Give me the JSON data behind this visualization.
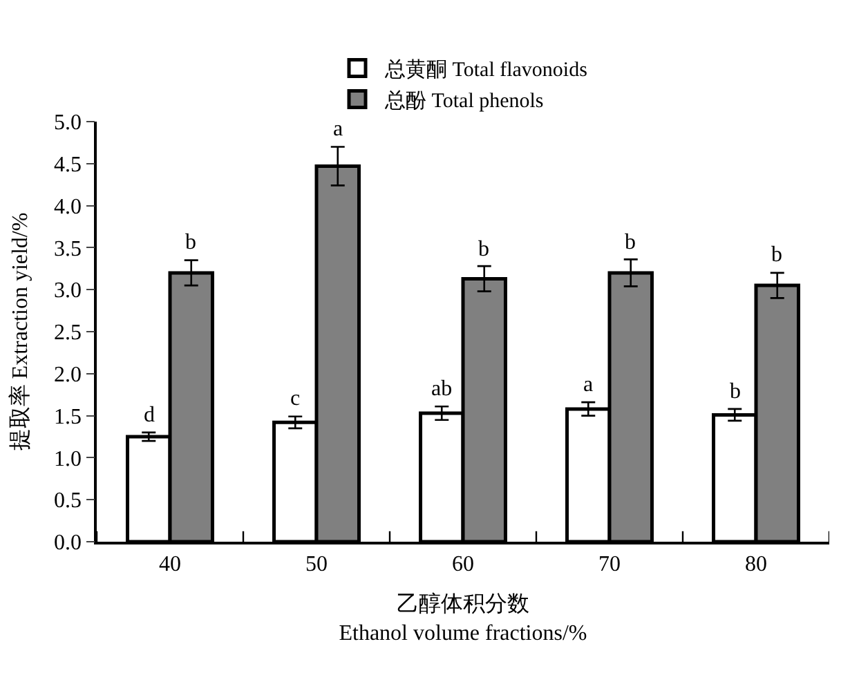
{
  "chart_data": {
    "type": "bar",
    "xlabel": "乙醇体积分数\nEthanol volume fractions/%",
    "ylabel": "提取率 Extraction yield/%",
    "categories": [
      "40",
      "50",
      "60",
      "70",
      "80"
    ],
    "series": [
      {
        "name": "总黄酮 Total flavonoids",
        "color": "#ffffff",
        "values": [
          1.25,
          1.42,
          1.53,
          1.58,
          1.51
        ],
        "errors": [
          0.05,
          0.07,
          0.08,
          0.08,
          0.07
        ]
      },
      {
        "name": "总酚 Total phenols",
        "color": "#808080",
        "values": [
          3.2,
          4.47,
          3.13,
          3.2,
          3.05
        ],
        "errors": [
          0.15,
          0.23,
          0.15,
          0.16,
          0.15
        ]
      }
    ],
    "ylim": [
      0,
      5
    ],
    "yticks": [
      {
        "value": 0,
        "label": "0.0"
      },
      {
        "value": 0.5,
        "label": "0.5"
      },
      {
        "value": 1,
        "label": "1.0"
      },
      {
        "value": 1.5,
        "label": "1.5"
      },
      {
        "value": 2,
        "label": "2.0"
      },
      {
        "value": 2.5,
        "label": "2.5"
      },
      {
        "value": 3,
        "label": "3.0"
      },
      {
        "value": 3.5,
        "label": "3.5"
      },
      {
        "value": 4,
        "label": "4.0"
      },
      {
        "value": 4.5,
        "label": "4.5"
      },
      {
        "value": 5,
        "label": "5.0"
      }
    ],
    "annotations": [
      {
        "text": "d",
        "x": "40",
        "y": 1.25
      },
      {
        "text": "b",
        "x": "40",
        "y": 3.2
      },
      {
        "text": "c",
        "x": "50",
        "y": 1.42
      },
      {
        "text": "a",
        "x": "50",
        "y": 4.47
      },
      {
        "text": "ab",
        "x": "60",
        "y": 1.53
      },
      {
        "text": "b",
        "x": "60",
        "y": 3.13
      },
      {
        "text": "a",
        "x": "70",
        "y": 1.58
      },
      {
        "text": "b",
        "x": "70",
        "y": 3.2
      },
      {
        "text": "b",
        "x": "80",
        "y": 1.51
      },
      {
        "text": "b",
        "x": "80",
        "y": 3.05
      }
    ],
    "grid": false,
    "legend": "top"
  }
}
